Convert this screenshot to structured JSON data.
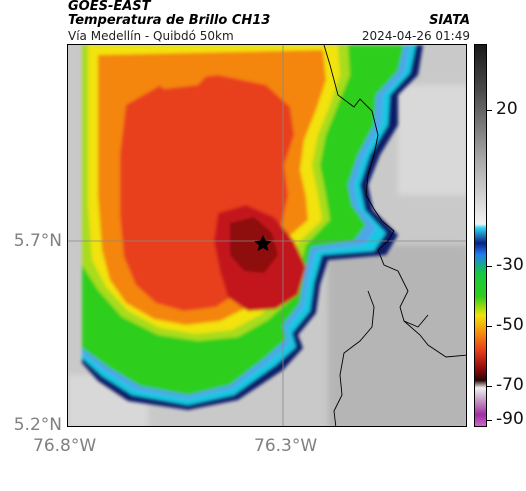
{
  "header": {
    "satellite": "GOES-EAST",
    "product": "Temperatura de Brillo CH13",
    "route": "Vía Medellín - Quibdó 50km",
    "org": "SIATA",
    "timestamp": "2024-04-26 01:49"
  },
  "map": {
    "y_ticks": [
      "5.7°N",
      "5.2°N"
    ],
    "x_ticks": [
      "76.8°W",
      "76.3°W"
    ],
    "marker_icon": "star-icon",
    "colors": {
      "cold_cloud_red": "#e8401b",
      "cold_cloud_orange": "#f4860f",
      "core_dark_red": "#8e0b0b",
      "warm_yellow": "#f2e20a",
      "green": "#2fce1c",
      "cyan": "#18c8e2",
      "navy": "#0b1a6b",
      "clear_gray": "#c9c9c9"
    }
  },
  "colorbar": {
    "ticks": [
      "20",
      "-30",
      "-50",
      "-70",
      "-90"
    ],
    "units_range": [
      -95,
      40
    ]
  }
}
